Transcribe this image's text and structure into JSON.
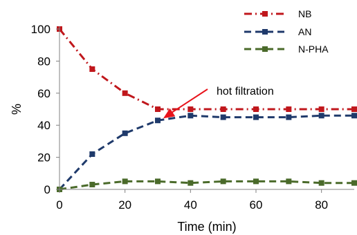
{
  "chart_data": {
    "type": "line",
    "title": "",
    "xlabel": "Time (min)",
    "ylabel": "%",
    "xlim": [
      0,
      90
    ],
    "ylim": [
      0,
      100
    ],
    "xticks": [
      "0",
      "20",
      "40",
      "60",
      "80"
    ],
    "yticks": [
      "0",
      "20",
      "40",
      "60",
      "80",
      "100"
    ],
    "grid": false,
    "legend_position": "top-right",
    "annotation": {
      "text": "hot filtration",
      "points_to": [
        30,
        46
      ]
    },
    "series": [
      {
        "name": "NB",
        "color": "#c0171c",
        "line_style": "dash-dot",
        "marker": "square",
        "x": [
          0,
          10,
          20,
          30,
          40,
          50,
          60,
          70,
          80,
          90
        ],
        "y": [
          100,
          75,
          60,
          50,
          50,
          50,
          50,
          50,
          50,
          50
        ]
      },
      {
        "name": "AN",
        "color": "#1f3a6b",
        "line_style": "dash",
        "marker": "square",
        "x": [
          0,
          10,
          20,
          30,
          40,
          50,
          60,
          70,
          80,
          90
        ],
        "y": [
          0,
          22,
          35,
          43,
          46,
          45,
          45,
          45,
          46,
          46
        ]
      },
      {
        "name": "N-PHA",
        "color": "#4a6a2a",
        "line_style": "dash",
        "marker": "square",
        "x": [
          0,
          10,
          20,
          30,
          40,
          50,
          60,
          70,
          80,
          90
        ],
        "y": [
          0,
          3,
          5,
          5,
          4,
          5,
          5,
          5,
          4,
          4
        ]
      }
    ]
  }
}
